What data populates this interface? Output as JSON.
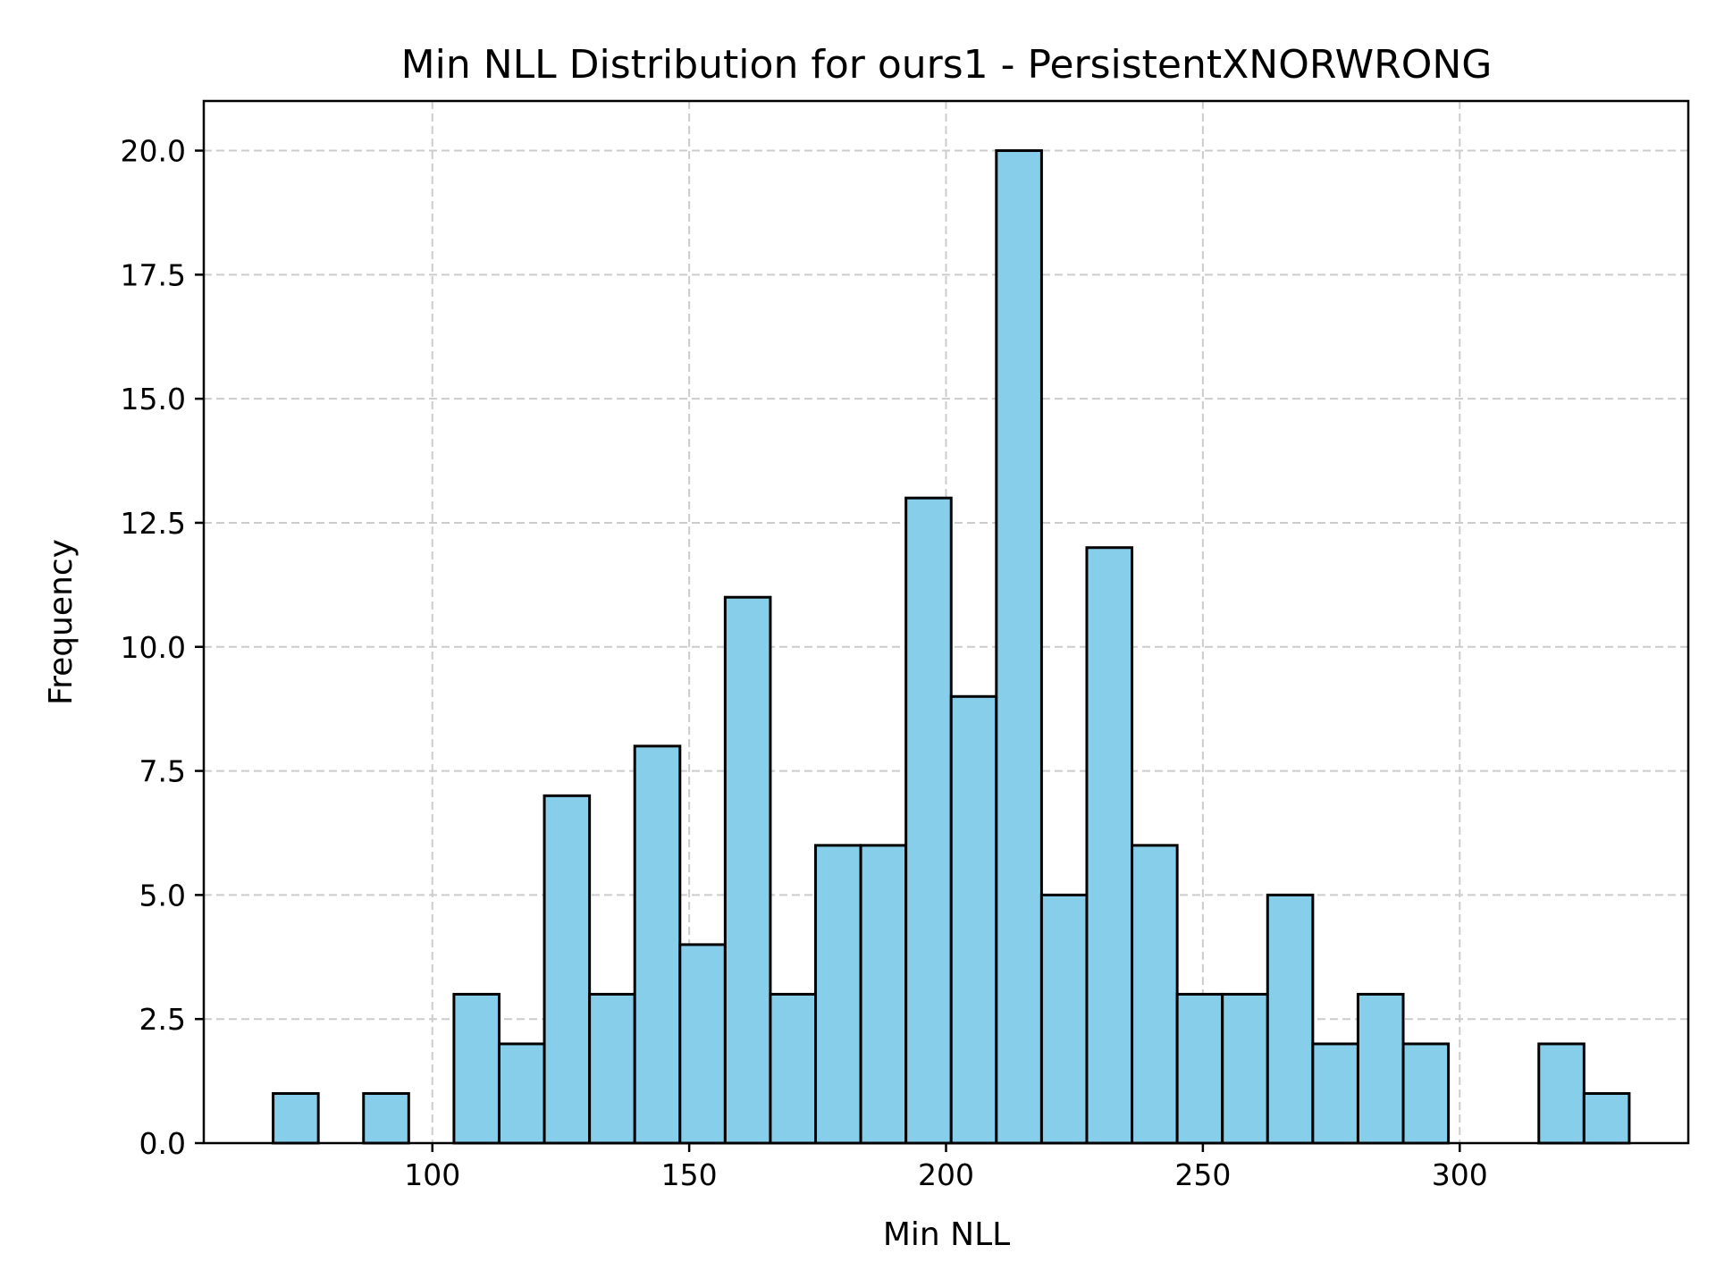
{
  "chart_data": {
    "type": "bar",
    "title": "Min NLL Distribution for ours1 - PersistentXNORWRONG",
    "xlabel": "Min NLL",
    "ylabel": "Frequency",
    "xlim": [
      55.5,
      344.5
    ],
    "ylim": [
      0,
      21
    ],
    "xticks": [
      100,
      150,
      200,
      250,
      300
    ],
    "xtick_labels": [
      "100",
      "150",
      "200",
      "250",
      "300"
    ],
    "yticks": [
      0,
      2.5,
      5,
      7.5,
      10,
      12.5,
      15,
      17.5,
      20
    ],
    "ytick_labels": [
      "0.0",
      "2.5",
      "5.0",
      "7.5",
      "10.0",
      "12.5",
      "15.0",
      "17.5",
      "20.0"
    ],
    "bin_start": 69.0,
    "bin_width": 8.8,
    "values": [
      1,
      0,
      1,
      0,
      3,
      2,
      7,
      3,
      8,
      4,
      11,
      3,
      6,
      6,
      13,
      9,
      20,
      5,
      12,
      6,
      3,
      3,
      5,
      2,
      3,
      2,
      0,
      0,
      2,
      1
    ],
    "bar_color": "#87ceeb",
    "edge_color": "#000000",
    "grid": true
  }
}
